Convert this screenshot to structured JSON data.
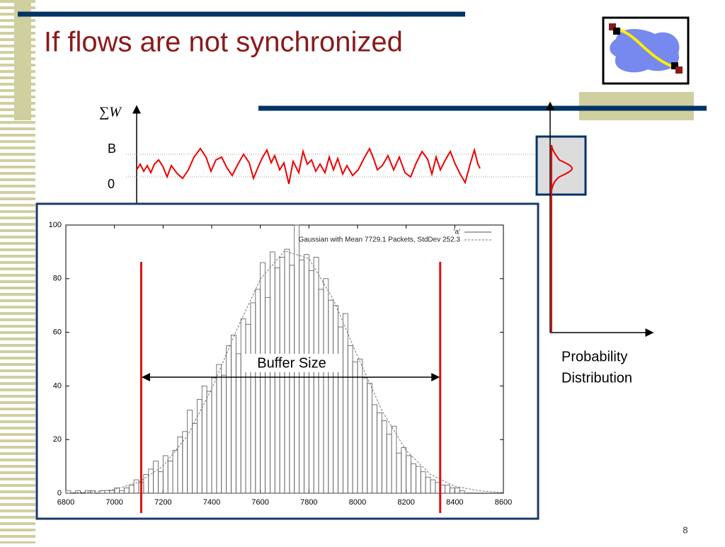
{
  "slide": {
    "title": "If flows are not synchronized",
    "page_number": "8",
    "sum_label": "∑W",
    "b_label": "B",
    "zero_label": "0",
    "prob_label_1": "Probability",
    "prob_label_2": "Distribution",
    "buffer_label": "Buffer Size"
  },
  "chart_data": {
    "type": "histogram",
    "bins": [
      6800,
      6820,
      6840,
      6860,
      6880,
      6900,
      6920,
      6940,
      6960,
      6980,
      7000,
      7020,
      7040,
      7060,
      7080,
      7100,
      7120,
      7140,
      7160,
      7180,
      7200,
      7220,
      7240,
      7260,
      7280,
      7300,
      7320,
      7340,
      7360,
      7380,
      7400,
      7420,
      7440,
      7460,
      7480,
      7500,
      7520,
      7540,
      7560,
      7580,
      7600,
      7620,
      7640,
      7660,
      7680,
      7700,
      7720,
      7740,
      7760,
      7780,
      7800,
      7820,
      7840,
      7860,
      7880,
      7900,
      7920,
      7940,
      7960,
      7980,
      8000,
      8020,
      8040,
      8060,
      8080,
      8100,
      8120,
      8140,
      8160,
      8180,
      8200,
      8220,
      8240,
      8260,
      8280,
      8300,
      8320,
      8340,
      8360,
      8380,
      8400,
      8420,
      8440,
      8460,
      8480,
      8500
    ],
    "series": [
      {
        "name": "'a'",
        "color": "#555555",
        "values": [
          1,
          0,
          1,
          0,
          1,
          1,
          0,
          1,
          1,
          1,
          2,
          1,
          2,
          3,
          5,
          4,
          7,
          9,
          12,
          8,
          14,
          12,
          16,
          21,
          23,
          31,
          26,
          35,
          40,
          38,
          43,
          48,
          44,
          55,
          59,
          52,
          65,
          63,
          71,
          76,
          86,
          73,
          90,
          84,
          88,
          91,
          85,
          100,
          87,
          89,
          83,
          88,
          76,
          80,
          72,
          70,
          62,
          67,
          55,
          49,
          50,
          43,
          41,
          33,
          30,
          27,
          22,
          25,
          15,
          17,
          14,
          11,
          10,
          8,
          6,
          5,
          4,
          3,
          3,
          2,
          2,
          1,
          0,
          0,
          0
        ]
      },
      {
        "name": "Gaussian with Mean 7729.1 Packets, StdDev 252.3",
        "color": "#777777",
        "x": [
          6800,
          6900,
          7000,
          7100,
          7200,
          7300,
          7400,
          7500,
          7600,
          7700,
          7800,
          7900,
          8000,
          8100,
          8200,
          8300,
          8400,
          8500,
          8600
        ],
        "values": [
          0.1,
          0.4,
          1.4,
          4.1,
          10.1,
          21.4,
          38.9,
          60.3,
          79.8,
          90.4,
          87.5,
          72.3,
          51.1,
          30.9,
          15.9,
          7.0,
          2.6,
          0.9,
          0.2
        ]
      }
    ],
    "markers": [
      7110,
      8340
    ],
    "marker_color": "#dd1111",
    "xlim": [
      6800,
      8600
    ],
    "ylim": [
      0,
      100
    ],
    "xticks": [
      6800,
      7000,
      7200,
      7400,
      7600,
      7800,
      8000,
      8200,
      8400,
      8600
    ],
    "yticks": [
      0,
      20,
      40,
      60,
      80,
      100
    ]
  }
}
